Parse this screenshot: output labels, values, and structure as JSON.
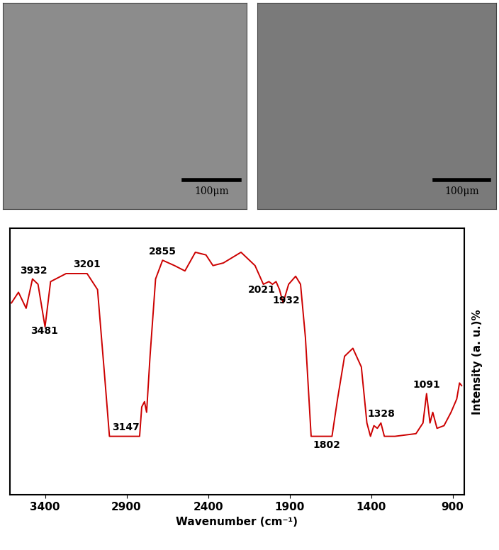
{
  "chart_data": {
    "type": "line",
    "x_label": "Wavenumber (cm⁻¹)",
    "y_label": "Intensity (a. u.)%",
    "color": "#cc0000",
    "x": [
      3606,
      3563,
      3516,
      3477,
      3443,
      3400,
      3366,
      3271,
      3142,
      3078,
      3035,
      3005,
      2992,
      2820,
      2807,
      2790,
      2777,
      2756,
      2722,
      2679,
      2606,
      2542,
      2478,
      2413,
      2370,
      2306,
      2198,
      2112,
      2061,
      2027,
      2005,
      1983,
      1962,
      1940,
      1906,
      1863,
      1833,
      1803,
      1768,
      1640,
      1606,
      1563,
      1512,
      1460,
      1426,
      1404,
      1383,
      1362,
      1340,
      1319,
      1254,
      1125,
      1082,
      1060,
      1039,
      1022,
      996,
      953,
      910,
      875,
      858,
      845
    ],
    "values": [
      72,
      76,
      70,
      81,
      79,
      63,
      80,
      83,
      83,
      77,
      45,
      22,
      22,
      22,
      33,
      35,
      31,
      52,
      81,
      88,
      86,
      84,
      91,
      90,
      86,
      87,
      91,
      86,
      79,
      80,
      79,
      80,
      77,
      72,
      79,
      82,
      79,
      59,
      22,
      22,
      36,
      52,
      55,
      48,
      27,
      22,
      26,
      25,
      27,
      22,
      22,
      23,
      27,
      38,
      27,
      31,
      25,
      26,
      31,
      36,
      42,
      41
    ],
    "xlim": [
      3615,
      830
    ],
    "xticks": [
      3400,
      2900,
      2400,
      1900,
      1400,
      900
    ],
    "ylim": [
      0,
      100
    ],
    "tick_labels": "x",
    "annotations": [
      {
        "x": 3470,
        "text": "3932"
      },
      {
        "x": 3142,
        "text": "3201"
      },
      {
        "x": 3405,
        "text": "3481"
      },
      {
        "x": 2906,
        "text": "3147"
      },
      {
        "x": 2679,
        "text": "2855"
      },
      {
        "x": 2070,
        "text": "2021"
      },
      {
        "x": 1919,
        "text": "1932"
      },
      {
        "x": 1674,
        "text": "1802"
      },
      {
        "x": 1340,
        "text": "1328"
      },
      {
        "x": 1060,
        "text": "1091"
      }
    ]
  },
  "images": [
    {
      "scale_bar": "100μm"
    },
    {
      "scale_bar": "100μm"
    }
  ]
}
